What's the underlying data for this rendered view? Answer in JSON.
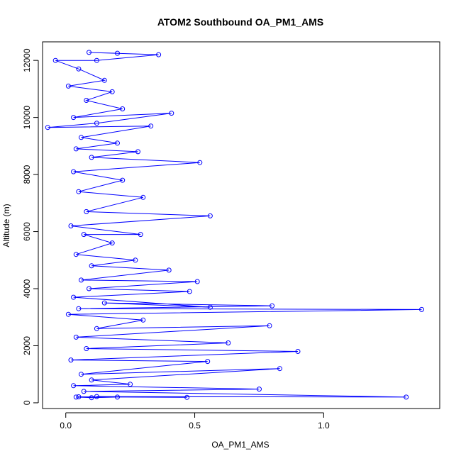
{
  "chart_data": {
    "type": "line",
    "title": "ATOM2 Southbound OA_PM1_AMS",
    "xlabel": "OA_PM1_AMS",
    "ylabel": "Altitude (m)",
    "xlim": [
      -0.09,
      1.45
    ],
    "ylim": [
      -200,
      12650
    ],
    "xticks": [
      0.0,
      0.5,
      1.0
    ],
    "xtick_labels": [
      "0.0",
      "0.5",
      "1.0"
    ],
    "yticks": [
      0,
      2000,
      4000,
      6000,
      8000,
      10000,
      12000
    ],
    "ytick_labels": [
      "0",
      "2000",
      "4000",
      "6000",
      "8000",
      "10000",
      "12000"
    ],
    "series": [
      {
        "name": "OA_PM1_AMS",
        "color": "#0000ff",
        "marker": "open-circle",
        "points": [
          {
            "x": 0.04,
            "y": 200
          },
          {
            "x": 0.1,
            "y": 180
          },
          {
            "x": 0.2,
            "y": 200
          },
          {
            "x": 0.05,
            "y": 210
          },
          {
            "x": 0.47,
            "y": 190
          },
          {
            "x": 0.12,
            "y": 220
          },
          {
            "x": 1.32,
            "y": 200
          },
          {
            "x": 0.07,
            "y": 400
          },
          {
            "x": 0.75,
            "y": 480
          },
          {
            "x": 0.03,
            "y": 600
          },
          {
            "x": 0.25,
            "y": 650
          },
          {
            "x": 0.1,
            "y": 800
          },
          {
            "x": 0.83,
            "y": 1200
          },
          {
            "x": 0.06,
            "y": 1000
          },
          {
            "x": 0.55,
            "y": 1450
          },
          {
            "x": 0.02,
            "y": 1500
          },
          {
            "x": 0.9,
            "y": 1800
          },
          {
            "x": 0.08,
            "y": 1900
          },
          {
            "x": 0.63,
            "y": 2100
          },
          {
            "x": 0.04,
            "y": 2300
          },
          {
            "x": 0.79,
            "y": 2700
          },
          {
            "x": 0.12,
            "y": 2600
          },
          {
            "x": 0.3,
            "y": 2900
          },
          {
            "x": 0.01,
            "y": 3100
          },
          {
            "x": 1.38,
            "y": 3270
          },
          {
            "x": 0.05,
            "y": 3300
          },
          {
            "x": 0.8,
            "y": 3400
          },
          {
            "x": 0.15,
            "y": 3500
          },
          {
            "x": 0.56,
            "y": 3350
          },
          {
            "x": 0.03,
            "y": 3700
          },
          {
            "x": 0.48,
            "y": 3900
          },
          {
            "x": 0.09,
            "y": 4000
          },
          {
            "x": 0.51,
            "y": 4250
          },
          {
            "x": 0.06,
            "y": 4300
          },
          {
            "x": 0.4,
            "y": 4650
          },
          {
            "x": 0.1,
            "y": 4800
          },
          {
            "x": 0.27,
            "y": 5000
          },
          {
            "x": 0.04,
            "y": 5200
          },
          {
            "x": 0.18,
            "y": 5600
          },
          {
            "x": 0.07,
            "y": 5900
          },
          {
            "x": 0.29,
            "y": 5900
          },
          {
            "x": 0.02,
            "y": 6200
          },
          {
            "x": 0.56,
            "y": 6550
          },
          {
            "x": 0.08,
            "y": 6700
          },
          {
            "x": 0.3,
            "y": 7200
          },
          {
            "x": 0.05,
            "y": 7400
          },
          {
            "x": 0.22,
            "y": 7800
          },
          {
            "x": 0.03,
            "y": 8100
          },
          {
            "x": 0.52,
            "y": 8420
          },
          {
            "x": 0.1,
            "y": 8600
          },
          {
            "x": 0.28,
            "y": 8800
          },
          {
            "x": 0.04,
            "y": 8900
          },
          {
            "x": 0.2,
            "y": 9100
          },
          {
            "x": 0.06,
            "y": 9300
          },
          {
            "x": 0.33,
            "y": 9700
          },
          {
            "x": -0.07,
            "y": 9650
          },
          {
            "x": 0.12,
            "y": 9800
          },
          {
            "x": 0.41,
            "y": 10150
          },
          {
            "x": 0.03,
            "y": 10000
          },
          {
            "x": 0.22,
            "y": 10300
          },
          {
            "x": 0.08,
            "y": 10600
          },
          {
            "x": 0.18,
            "y": 10900
          },
          {
            "x": 0.01,
            "y": 11100
          },
          {
            "x": 0.15,
            "y": 11300
          },
          {
            "x": 0.05,
            "y": 11700
          },
          {
            "x": -0.04,
            "y": 12000
          },
          {
            "x": 0.12,
            "y": 12000
          },
          {
            "x": 0.36,
            "y": 12200
          },
          {
            "x": 0.09,
            "y": 12280
          },
          {
            "x": 0.2,
            "y": 12250
          }
        ]
      }
    ]
  }
}
